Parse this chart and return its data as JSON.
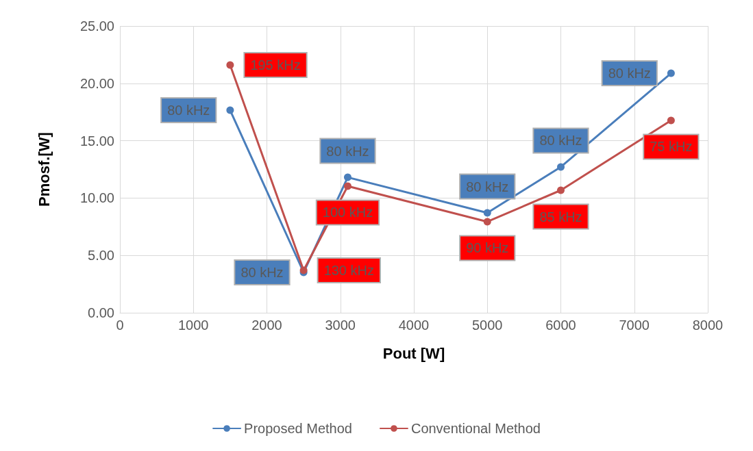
{
  "chart_data": {
    "type": "line",
    "xlabel": "Pout [W]",
    "ylabel": "Pmosf.[W]",
    "xlim": [
      0,
      8000
    ],
    "xticks": [
      0,
      1000,
      2000,
      3000,
      4000,
      5000,
      6000,
      7000,
      8000
    ],
    "ylim": [
      0,
      25
    ],
    "yticks": [
      {
        "value": 0,
        "label": "0.00"
      },
      {
        "value": 5,
        "label": "5.00"
      },
      {
        "value": 10,
        "label": "10.00"
      },
      {
        "value": 15,
        "label": "15.00"
      },
      {
        "value": 20,
        "label": "20.00"
      },
      {
        "value": 25,
        "label": "25.00"
      }
    ],
    "grid": true,
    "legend": "bottom",
    "marker": "circle",
    "line_style": "solid",
    "series": [
      {
        "name": "Proposed Method",
        "color": "#4a7ebb",
        "x": [
          1500,
          2500,
          3100,
          5000,
          6000,
          7500
        ],
        "values": [
          17.66,
          3.52,
          11.81,
          8.71,
          12.71,
          20.88
        ]
      },
      {
        "name": "Conventional Method",
        "color": "#c0504d",
        "x": [
          1500,
          2500,
          3100,
          5000,
          6000,
          7500
        ],
        "values": [
          21.6,
          3.7,
          11.04,
          7.94,
          10.68,
          16.77
        ]
      }
    ],
    "annotations": [
      {
        "text": "80 kHz",
        "x": 1500,
        "y": 17.66
      },
      {
        "text": "80 kHz",
        "x": 2500,
        "y": 3.52
      },
      {
        "text": "80 kHz",
        "x": 3100,
        "y": 11.81
      },
      {
        "text": "80 kHz",
        "x": 5000,
        "y": 8.71
      },
      {
        "text": "80 kHz",
        "x": 6000,
        "y": 12.71
      },
      {
        "text": "80 kHz",
        "x": 7500,
        "y": 20.88
      },
      {
        "text": "195 kHz",
        "x": 1500,
        "y": 21.6
      },
      {
        "text": "130 kHz",
        "x": 2500,
        "y": 3.7
      },
      {
        "text": "100 kHz",
        "x": 3100,
        "y": 11.04
      },
      {
        "text": "90 kHz",
        "x": 5000,
        "y": 7.94
      },
      {
        "text": "85 kHz",
        "x": 6000,
        "y": 10.68
      },
      {
        "text": "75 kHz",
        "x": 7500,
        "y": 16.77
      }
    ]
  }
}
